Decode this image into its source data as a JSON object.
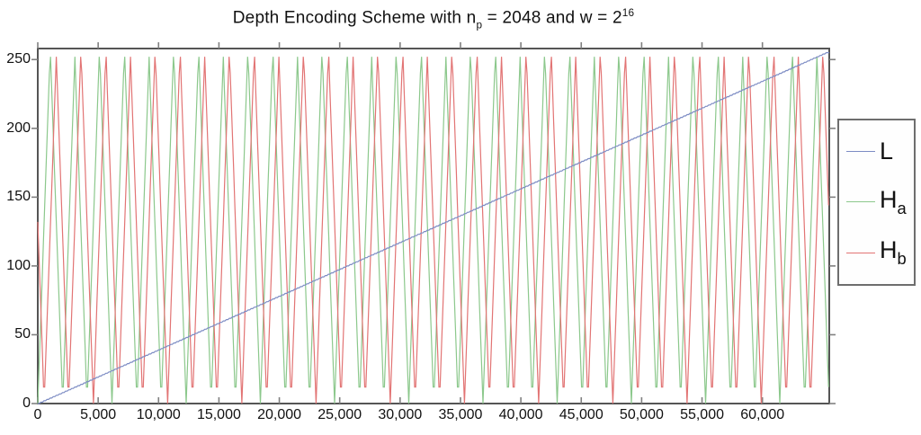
{
  "figure": {
    "title_segments": [
      {
        "text": "Depth Encoding Scheme with n",
        "script": "normal"
      },
      {
        "text": "p",
        "script": "sub"
      },
      {
        "text": " = 2048 and w = 2",
        "script": "normal"
      },
      {
        "text": "16",
        "script": "sup"
      }
    ]
  },
  "chart_data": {
    "type": "line",
    "title": "Depth Encoding Scheme with n_p = 2048 and w = 2^16",
    "xlabel": "",
    "ylabel": "",
    "xlim": [
      0,
      65535
    ],
    "ylim": [
      0,
      258
    ],
    "grid": false,
    "legend_position": "right-outside",
    "x_ticks": {
      "values": [
        0,
        5000,
        10000,
        15000,
        20000,
        25000,
        30000,
        35000,
        40000,
        45000,
        50000,
        55000,
        60000
      ],
      "labels": [
        "0",
        "5,000",
        "10,000",
        "15,000",
        "20,000",
        "25,000",
        "30,000",
        "35,000",
        "40,000",
        "45,000",
        "50,000",
        "55,000",
        "60,000"
      ]
    },
    "y_ticks": {
      "values": [
        0,
        50,
        100,
        150,
        200,
        250
      ],
      "labels": [
        "0",
        "50",
        "100",
        "150",
        "200",
        "250"
      ]
    },
    "axis_color": "#555555",
    "tick_color": "#808080",
    "series": [
      {
        "name": "H_a",
        "legend_main": "H",
        "legend_sub": "a",
        "color": "#8cc88c",
        "kind": "triangle",
        "params": {
          "period": 2048,
          "phase": 0,
          "amplitude": 255,
          "periods_shown": 32,
          "quantize": 12
        }
      },
      {
        "name": "H_b",
        "legend_main": "H",
        "legend_sub": "b",
        "color": "#e27474",
        "kind": "triangle",
        "params": {
          "period": 2048,
          "phase": 512,
          "amplitude": 255,
          "start_value": 127.5,
          "periods_shown": 32,
          "quantize": 12
        }
      },
      {
        "name": "L",
        "legend_main": "L",
        "legend_sub": "",
        "color": "#7d8cc4",
        "kind": "linear-staircase",
        "params": {
          "start": [
            0,
            0
          ],
          "end": [
            65535,
            255
          ],
          "step_width": 256,
          "levels": 256
        }
      }
    ],
    "legend_order": [
      "L",
      "H_a",
      "H_b"
    ]
  }
}
